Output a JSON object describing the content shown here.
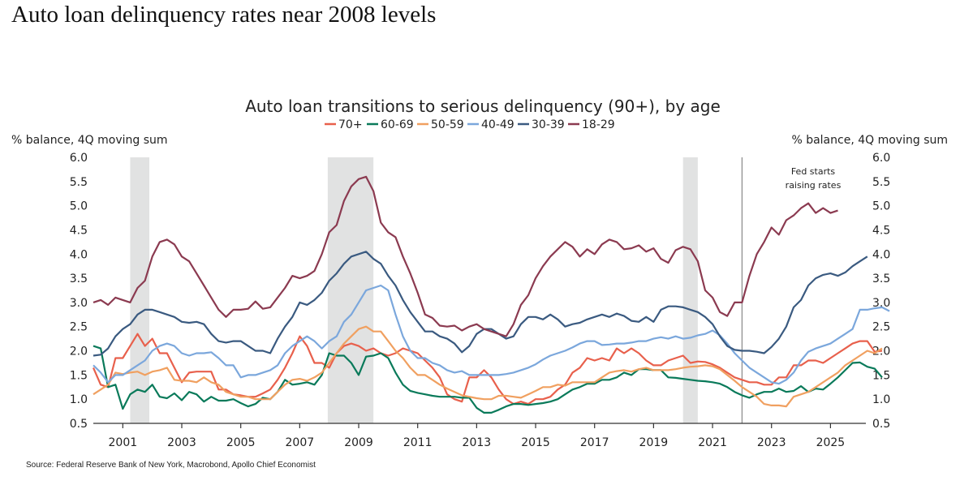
{
  "page": {
    "title": "Auto loan delinquency rates near 2008 levels",
    "source": "Source: Federal Reserve Bank of New York, Macrobond, Apollo Chief Economist"
  },
  "chart_data": {
    "type": "line",
    "title": "Auto loan transitions to serious delinquency (90+), by age",
    "ylabel_left": "% balance, 4Q moving sum",
    "ylabel_right": "% balance, 4Q moving sum",
    "xlabel": "",
    "ylim": [
      0.5,
      6.0
    ],
    "yticks": [
      "0.5",
      "1.0",
      "1.5",
      "2.0",
      "2.5",
      "3.0",
      "3.5",
      "4.0",
      "4.5",
      "5.0",
      "5.5",
      "6.0"
    ],
    "xlim": [
      2000.0,
      2026.2
    ],
    "xticks": [
      "2001",
      "2003",
      "2005",
      "2007",
      "2009",
      "2011",
      "2013",
      "2015",
      "2017",
      "2019",
      "2021",
      "2023",
      "2025"
    ],
    "x_start": 2000.0,
    "x_step": 0.25,
    "grid": false,
    "legend_position": "top-center",
    "recessions": [
      {
        "start": 2001.25,
        "end": 2001.9
      },
      {
        "start": 2007.95,
        "end": 2009.5
      },
      {
        "start": 2020.0,
        "end": 2020.5
      }
    ],
    "annotations": [
      {
        "x": 2022.0,
        "type": "vertical-line",
        "label_lines": [
          "Fed starts",
          "raising rates"
        ]
      }
    ],
    "series": [
      {
        "name": "70+",
        "color": "#e8604c",
        "values": [
          1.65,
          1.3,
          1.25,
          1.85,
          1.85,
          2.1,
          2.35,
          2.1,
          2.25,
          1.95,
          1.95,
          1.65,
          1.35,
          1.55,
          1.57,
          1.57,
          1.57,
          1.2,
          1.2,
          1.1,
          1.08,
          1.05,
          1.05,
          1.12,
          1.2,
          1.4,
          1.65,
          1.95,
          2.3,
          2.1,
          1.75,
          1.75,
          1.65,
          1.95,
          2.1,
          2.15,
          2.1,
          2.0,
          2.05,
          1.95,
          1.9,
          1.95,
          2.05,
          2.0,
          1.95,
          1.8,
          1.65,
          1.45,
          1.1,
          1.0,
          0.95,
          1.45,
          1.45,
          1.6,
          1.45,
          1.2,
          1.0,
          0.9,
          0.95,
          0.9,
          1.0,
          1.0,
          1.05,
          1.2,
          1.3,
          1.55,
          1.65,
          1.85,
          1.8,
          1.85,
          1.8,
          2.05,
          1.95,
          2.05,
          1.95,
          1.8,
          1.7,
          1.7,
          1.8,
          1.85,
          1.9,
          1.75,
          1.78,
          1.77,
          1.72,
          1.65,
          1.55,
          1.45,
          1.4,
          1.35,
          1.35,
          1.3,
          1.3,
          1.45,
          1.45,
          1.7,
          1.7,
          1.8,
          1.8,
          1.75,
          1.85,
          1.95,
          2.05,
          2.15,
          2.2,
          2.2,
          1.98,
          2.0
        ]
      },
      {
        "name": "60-69",
        "color": "#0a7a5a",
        "values": [
          2.1,
          2.05,
          1.25,
          1.3,
          0.8,
          1.1,
          1.2,
          1.15,
          1.3,
          1.05,
          1.02,
          1.12,
          0.98,
          1.15,
          1.1,
          0.95,
          1.05,
          0.97,
          0.97,
          1.0,
          0.92,
          0.85,
          0.9,
          1.03,
          1.0,
          1.15,
          1.4,
          1.3,
          1.32,
          1.35,
          1.3,
          1.5,
          1.95,
          1.9,
          1.9,
          1.75,
          1.5,
          1.88,
          1.9,
          1.95,
          1.85,
          1.55,
          1.3,
          1.17,
          1.13,
          1.1,
          1.07,
          1.05,
          1.05,
          1.05,
          1.03,
          1.03,
          0.82,
          0.72,
          0.72,
          0.78,
          0.85,
          0.9,
          0.9,
          0.88,
          0.9,
          0.92,
          0.95,
          1.0,
          1.1,
          1.2,
          1.25,
          1.32,
          1.32,
          1.4,
          1.4,
          1.45,
          1.55,
          1.5,
          1.62,
          1.62,
          1.6,
          1.6,
          1.45,
          1.44,
          1.42,
          1.4,
          1.38,
          1.37,
          1.35,
          1.32,
          1.25,
          1.15,
          1.08,
          1.03,
          1.1,
          1.15,
          1.15,
          1.22,
          1.15,
          1.17,
          1.27,
          1.15,
          1.22,
          1.2,
          1.32,
          1.45,
          1.6,
          1.75,
          1.76,
          1.67,
          1.63,
          1.45
        ]
      },
      {
        "name": "50-59",
        "color": "#f0a060",
        "values": [
          1.1,
          1.2,
          1.3,
          1.55,
          1.52,
          1.55,
          1.57,
          1.5,
          1.57,
          1.6,
          1.65,
          1.4,
          1.38,
          1.38,
          1.35,
          1.45,
          1.35,
          1.3,
          1.15,
          1.1,
          1.05,
          1.05,
          1.0,
          1.0,
          1.0,
          1.15,
          1.3,
          1.4,
          1.42,
          1.38,
          1.45,
          1.55,
          1.75,
          1.95,
          2.15,
          2.3,
          2.45,
          2.5,
          2.4,
          2.4,
          2.2,
          2.0,
          1.85,
          1.65,
          1.5,
          1.5,
          1.4,
          1.3,
          1.22,
          1.15,
          1.08,
          1.05,
          1.02,
          1.0,
          1.0,
          1.07,
          1.07,
          1.05,
          1.03,
          1.1,
          1.17,
          1.25,
          1.25,
          1.3,
          1.28,
          1.35,
          1.35,
          1.35,
          1.35,
          1.45,
          1.55,
          1.58,
          1.6,
          1.57,
          1.62,
          1.65,
          1.6,
          1.6,
          1.6,
          1.62,
          1.65,
          1.67,
          1.68,
          1.7,
          1.68,
          1.62,
          1.5,
          1.38,
          1.25,
          1.15,
          1.05,
          0.9,
          0.87,
          0.87,
          0.85,
          1.05,
          1.1,
          1.15,
          1.25,
          1.35,
          1.45,
          1.55,
          1.7,
          1.8,
          1.9,
          2.0,
          1.95,
          2.05
        ]
      },
      {
        "name": "40-49",
        "color": "#7ba7dc",
        "values": [
          1.7,
          1.55,
          1.35,
          1.5,
          1.5,
          1.6,
          1.7,
          1.8,
          2.0,
          2.1,
          2.15,
          2.1,
          1.95,
          1.9,
          1.95,
          1.95,
          1.97,
          1.85,
          1.7,
          1.7,
          1.45,
          1.5,
          1.5,
          1.55,
          1.6,
          1.7,
          1.95,
          2.1,
          2.2,
          2.3,
          2.2,
          2.05,
          2.2,
          2.3,
          2.6,
          2.75,
          3.0,
          3.25,
          3.3,
          3.35,
          3.25,
          2.75,
          2.3,
          2.0,
          1.85,
          1.85,
          1.75,
          1.7,
          1.6,
          1.55,
          1.58,
          1.5,
          1.5,
          1.5,
          1.5,
          1.5,
          1.52,
          1.55,
          1.6,
          1.65,
          1.72,
          1.82,
          1.9,
          1.95,
          2.0,
          2.07,
          2.15,
          2.2,
          2.2,
          2.12,
          2.13,
          2.15,
          2.15,
          2.17,
          2.2,
          2.2,
          2.25,
          2.28,
          2.25,
          2.3,
          2.25,
          2.27,
          2.32,
          2.35,
          2.42,
          2.32,
          2.15,
          1.95,
          1.8,
          1.65,
          1.55,
          1.45,
          1.35,
          1.32,
          1.4,
          1.55,
          1.8,
          1.98,
          2.05,
          2.1,
          2.15,
          2.25,
          2.35,
          2.45,
          2.85,
          2.85,
          2.88,
          2.9,
          2.82
        ]
      },
      {
        "name": "30-39",
        "color": "#3a5a80",
        "values": [
          1.9,
          1.92,
          2.05,
          2.3,
          2.45,
          2.55,
          2.75,
          2.85,
          2.85,
          2.8,
          2.75,
          2.7,
          2.6,
          2.58,
          2.6,
          2.55,
          2.35,
          2.2,
          2.17,
          2.2,
          2.2,
          2.1,
          2.0,
          2.0,
          1.95,
          2.25,
          2.5,
          2.7,
          3.0,
          2.95,
          3.05,
          3.2,
          3.45,
          3.6,
          3.8,
          3.95,
          4.0,
          4.05,
          3.9,
          3.8,
          3.55,
          3.35,
          3.05,
          2.8,
          2.6,
          2.4,
          2.4,
          2.3,
          2.25,
          2.15,
          1.97,
          2.1,
          2.35,
          2.45,
          2.45,
          2.35,
          2.25,
          2.3,
          2.55,
          2.7,
          2.7,
          2.65,
          2.75,
          2.65,
          2.5,
          2.55,
          2.58,
          2.65,
          2.7,
          2.75,
          2.7,
          2.77,
          2.72,
          2.62,
          2.6,
          2.7,
          2.6,
          2.85,
          2.92,
          2.92,
          2.9,
          2.85,
          2.8,
          2.7,
          2.55,
          2.3,
          2.1,
          2.02,
          2.0,
          2.0,
          1.98,
          1.95,
          2.08,
          2.25,
          2.5,
          2.9,
          3.05,
          3.35,
          3.5,
          3.57,
          3.6,
          3.55,
          3.62,
          3.75,
          3.85,
          3.95
        ]
      },
      {
        "name": "18-29",
        "color": "#8b3a50",
        "values": [
          3.0,
          3.05,
          2.95,
          3.1,
          3.05,
          3.0,
          3.3,
          3.45,
          3.95,
          4.25,
          4.3,
          4.2,
          3.95,
          3.85,
          3.6,
          3.35,
          3.1,
          2.85,
          2.7,
          2.85,
          2.85,
          2.87,
          3.02,
          2.87,
          2.9,
          3.1,
          3.3,
          3.55,
          3.5,
          3.55,
          3.65,
          4.0,
          4.45,
          4.6,
          5.1,
          5.4,
          5.55,
          5.6,
          5.3,
          4.65,
          4.45,
          4.35,
          3.95,
          3.6,
          3.2,
          2.75,
          2.68,
          2.52,
          2.5,
          2.52,
          2.42,
          2.5,
          2.55,
          2.45,
          2.4,
          2.35,
          2.3,
          2.55,
          2.95,
          3.15,
          3.5,
          3.75,
          3.95,
          4.1,
          4.25,
          4.15,
          3.95,
          4.1,
          4.0,
          4.2,
          4.3,
          4.25,
          4.1,
          4.12,
          4.18,
          4.05,
          4.12,
          3.9,
          3.82,
          4.08,
          4.15,
          4.1,
          3.85,
          3.25,
          3.1,
          2.8,
          2.72,
          3.0,
          3.0,
          3.55,
          4.0,
          4.25,
          4.55,
          4.4,
          4.7,
          4.8,
          4.95,
          5.05,
          4.85,
          4.95,
          4.85,
          4.9
        ]
      }
    ]
  }
}
